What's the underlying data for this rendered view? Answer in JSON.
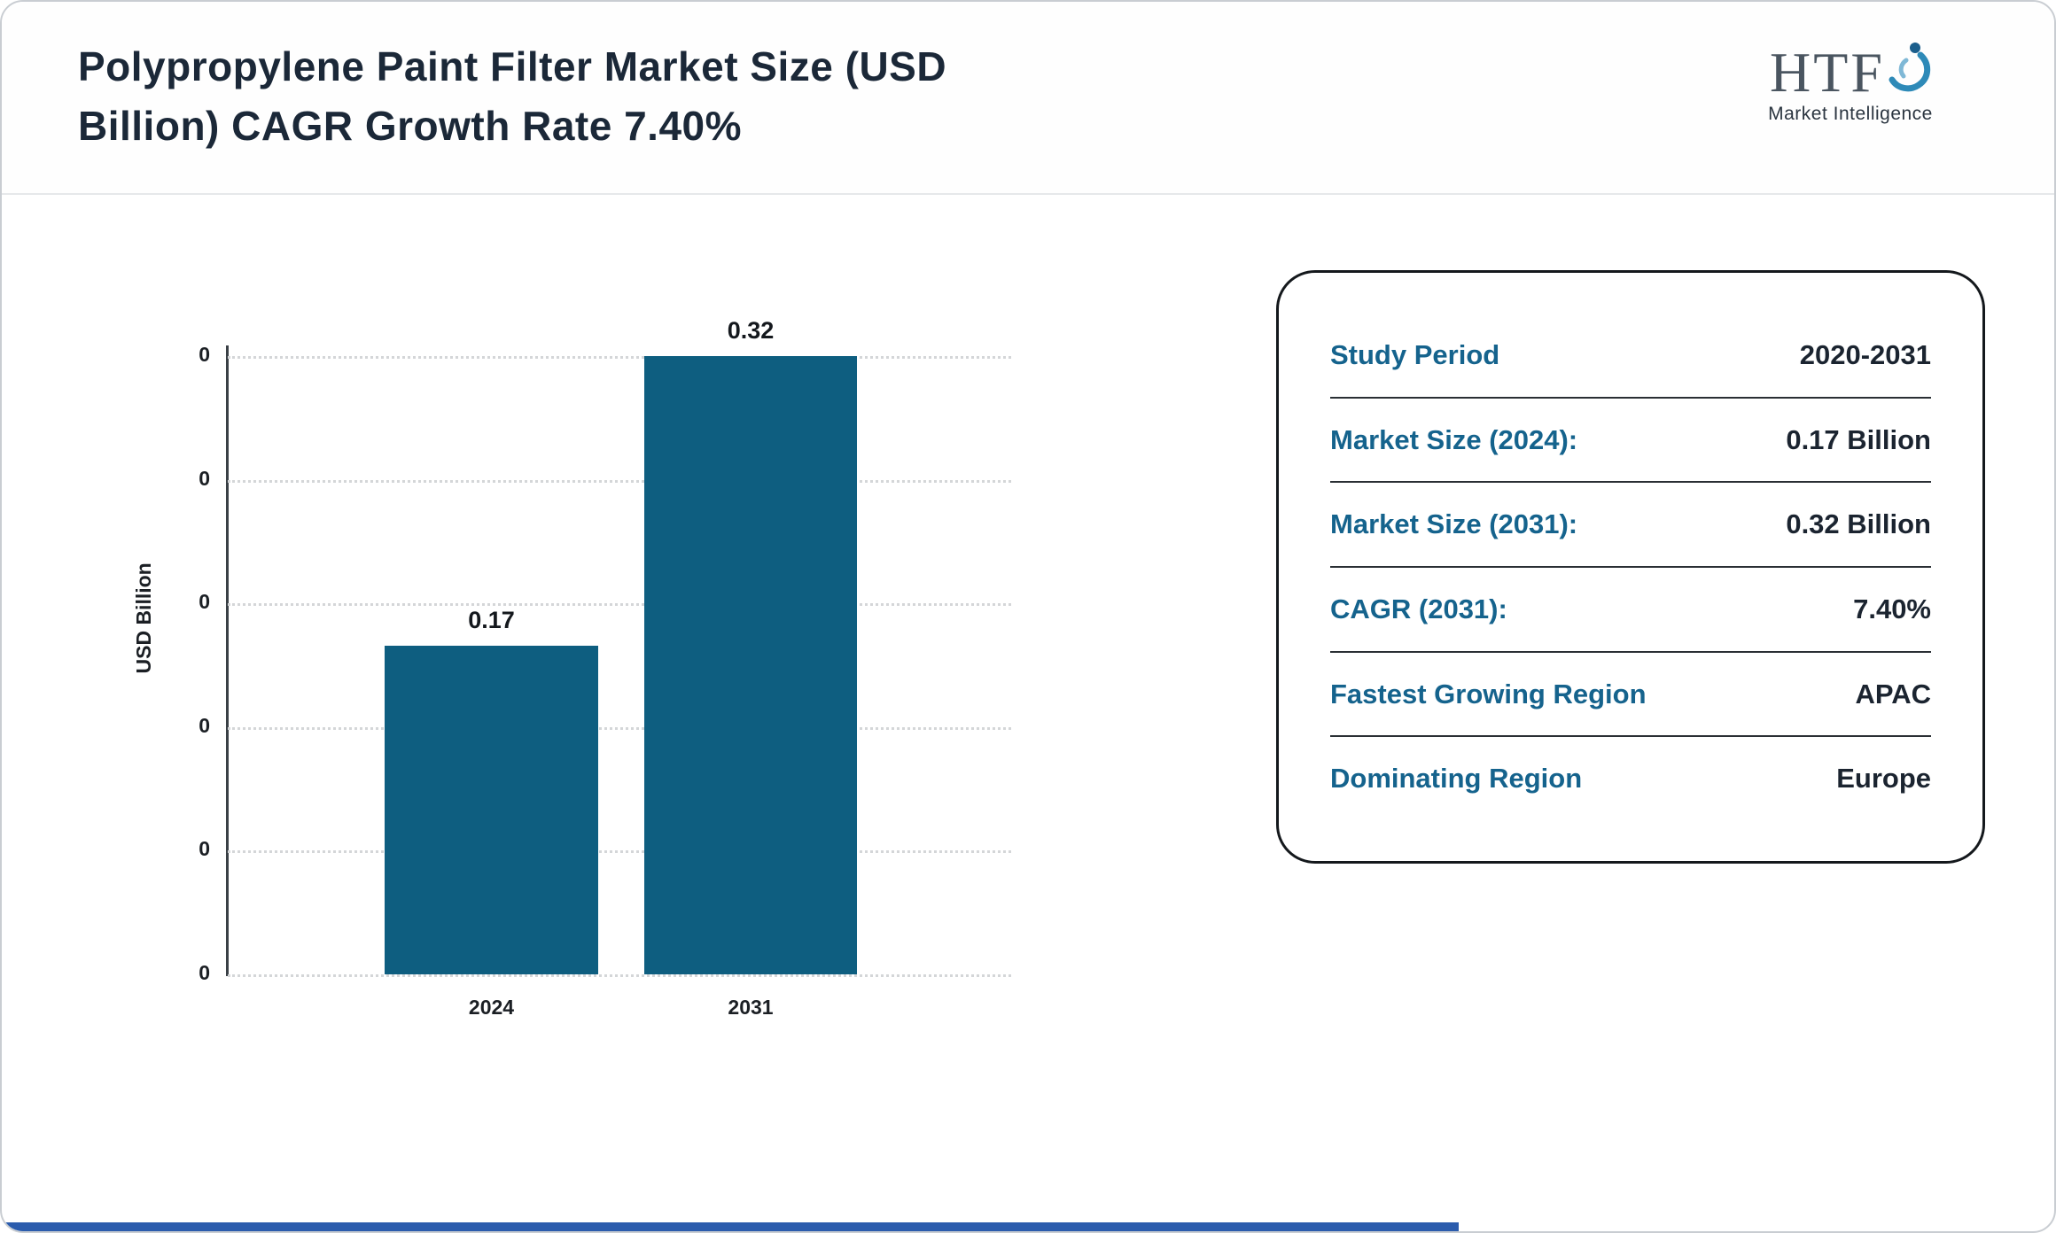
{
  "header": {
    "title_line1": "Polypropylene Paint Filter Market Size (USD",
    "title_line2": "Billion) CAGR Growth Rate 7.40%",
    "logo": {
      "name": "HTF",
      "tagline": "Market Intelligence"
    }
  },
  "chart_data": {
    "type": "bar",
    "title": "Polypropylene Paint Filter Market Size (USD Billion) CAGR Growth Rate 7.40%",
    "categories": [
      "2024",
      "2031"
    ],
    "values": [
      0.17,
      0.32
    ],
    "value_labels": [
      "0.17",
      "0.32"
    ],
    "xlabel": "",
    "ylabel": "USD Billion",
    "ylim": [
      0,
      0.32
    ],
    "y_tick_labels": [
      "0",
      "0",
      "0",
      "0",
      "0",
      "0"
    ],
    "grid": "horizontal dotted",
    "legend": "none",
    "bar_color": "#0e5e80"
  },
  "info_card": {
    "rows": [
      {
        "label": "Study Period",
        "value": "2020-2031"
      },
      {
        "label": "Market Size (2024):",
        "value": "0.17 Billion"
      },
      {
        "label": "Market Size (2031):",
        "value": "0.32 Billion"
      },
      {
        "label": "CAGR (2031):",
        "value": "7.40%"
      },
      {
        "label": "Fastest Growing Region",
        "value": "APAC"
      },
      {
        "label": "Dominating Region",
        "value": "Europe"
      }
    ]
  },
  "colors": {
    "bar": "#0e5e80",
    "label_teal": "#15638d",
    "value_dark": "#1b2430",
    "title_dark": "#1b2838",
    "bottom_strip": "#2b5cad"
  }
}
